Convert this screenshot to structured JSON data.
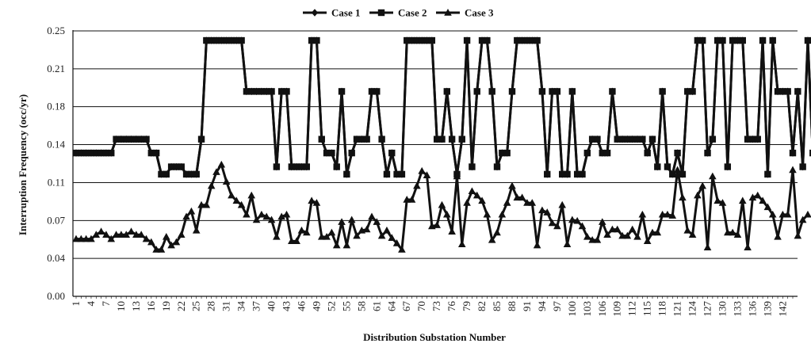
{
  "chart_data": {
    "type": "line",
    "title": "",
    "xlabel": "Distribution Substation Number",
    "ylabel": "Interruption Frequency (occ/yr)",
    "ylim": [
      0,
      0.25
    ],
    "y_ticks": [
      "0.00",
      "0.04",
      "0.07",
      "0.11",
      "0.14",
      "0.18",
      "0.21",
      "0.25"
    ],
    "y_tick_values": [
      0,
      0.0357,
      0.0714,
      0.1071,
      0.1429,
      0.1786,
      0.2143,
      0.25
    ],
    "grid": true,
    "legend_position": "top-center",
    "x_ticks": [
      1,
      4,
      7,
      10,
      13,
      16,
      19,
      22,
      25,
      28,
      31,
      34,
      37,
      40,
      43,
      46,
      49,
      52,
      55,
      58,
      61,
      64,
      67,
      70,
      73,
      76,
      79,
      82,
      85,
      88,
      91,
      94,
      97,
      100,
      103,
      106,
      109,
      112,
      115,
      118,
      121,
      124,
      127,
      130,
      133,
      136,
      139,
      142
    ],
    "x_max": 144,
    "series_color": "#111111",
    "series": [
      {
        "name": "Case 1",
        "marker": "diamond",
        "values": [
          0.135,
          0.135,
          0.135,
          0.135,
          0.135,
          0.135,
          0.135,
          0.135,
          0.148,
          0.148,
          0.148,
          0.148,
          0.148,
          0.148,
          0.148,
          0.135,
          0.135,
          0.115,
          0.115,
          0.122,
          0.122,
          0.122,
          0.115,
          0.115,
          0.115,
          0.148,
          0.241,
          0.241,
          0.241,
          0.241,
          0.241,
          0.241,
          0.241,
          0.241,
          0.193,
          0.193,
          0.193,
          0.193,
          0.193,
          0.193,
          0.122,
          0.193,
          0.193,
          0.122,
          0.122,
          0.122,
          0.122,
          0.241,
          0.241,
          0.148,
          0.135,
          0.135,
          0.122,
          0.193,
          0.115,
          0.135,
          0.148,
          0.148,
          0.148,
          0.193,
          0.193,
          0.148,
          0.115,
          0.135,
          0.115,
          0.115,
          0.241,
          0.241,
          0.241,
          0.241,
          0.241,
          0.241,
          0.148,
          0.148,
          0.193,
          0.148,
          0.115,
          0.148,
          0.241,
          0.122,
          0.193,
          0.241,
          0.241,
          0.193,
          0.122,
          0.135,
          0.135,
          0.193,
          0.241,
          0.241,
          0.241,
          0.241,
          0.241,
          0.193,
          0.115,
          0.193,
          0.193,
          0.115,
          0.115,
          0.193,
          0.115,
          0.115,
          0.135,
          0.148,
          0.148,
          0.135,
          0.135,
          0.193,
          0.148,
          0.148,
          0.148,
          0.148,
          0.148,
          0.148,
          0.135,
          0.148,
          0.122,
          0.193,
          0.122,
          0.115,
          0.135,
          0.115,
          0.193,
          0.193,
          0.241,
          0.241,
          0.135,
          0.148,
          0.241,
          0.241,
          0.122,
          0.241,
          0.241,
          0.241,
          0.148,
          0.148,
          0.148,
          0.241,
          0.115,
          0.241,
          0.193,
          0.193,
          0.193,
          0.135,
          0.193,
          0.122,
          0.241,
          0.135,
          0.193,
          0.193
        ]
      },
      {
        "name": "Case 2",
        "marker": "square",
        "values": [
          0.135,
          0.135,
          0.135,
          0.135,
          0.135,
          0.135,
          0.135,
          0.135,
          0.148,
          0.148,
          0.148,
          0.148,
          0.148,
          0.148,
          0.148,
          0.135,
          0.135,
          0.115,
          0.115,
          0.122,
          0.122,
          0.122,
          0.115,
          0.115,
          0.115,
          0.148,
          0.241,
          0.241,
          0.241,
          0.241,
          0.241,
          0.241,
          0.241,
          0.241,
          0.193,
          0.193,
          0.193,
          0.193,
          0.193,
          0.193,
          0.122,
          0.193,
          0.193,
          0.122,
          0.122,
          0.122,
          0.122,
          0.241,
          0.241,
          0.148,
          0.135,
          0.135,
          0.122,
          0.193,
          0.115,
          0.135,
          0.148,
          0.148,
          0.148,
          0.193,
          0.193,
          0.148,
          0.115,
          0.135,
          0.115,
          0.115,
          0.241,
          0.241,
          0.241,
          0.241,
          0.241,
          0.241,
          0.148,
          0.148,
          0.193,
          0.148,
          0.115,
          0.148,
          0.241,
          0.122,
          0.193,
          0.241,
          0.241,
          0.193,
          0.122,
          0.135,
          0.135,
          0.193,
          0.241,
          0.241,
          0.241,
          0.241,
          0.241,
          0.193,
          0.115,
          0.193,
          0.193,
          0.115,
          0.115,
          0.193,
          0.115,
          0.115,
          0.135,
          0.148,
          0.148,
          0.135,
          0.135,
          0.193,
          0.148,
          0.148,
          0.148,
          0.148,
          0.148,
          0.148,
          0.135,
          0.148,
          0.122,
          0.193,
          0.122,
          0.115,
          0.135,
          0.115,
          0.193,
          0.193,
          0.241,
          0.241,
          0.135,
          0.148,
          0.241,
          0.241,
          0.122,
          0.241,
          0.241,
          0.241,
          0.148,
          0.148,
          0.148,
          0.241,
          0.115,
          0.241,
          0.193,
          0.193,
          0.193,
          0.135,
          0.193,
          0.122,
          0.241,
          0.135,
          0.193,
          0.193
        ]
      },
      {
        "name": "Case 3",
        "marker": "triangle",
        "values": [
          0.054,
          0.054,
          0.054,
          0.054,
          0.058,
          0.061,
          0.058,
          0.054,
          0.058,
          0.058,
          0.058,
          0.061,
          0.058,
          0.058,
          0.054,
          0.051,
          0.044,
          0.044,
          0.056,
          0.048,
          0.051,
          0.058,
          0.075,
          0.08,
          0.062,
          0.086,
          0.086,
          0.104,
          0.117,
          0.124,
          0.108,
          0.095,
          0.09,
          0.086,
          0.077,
          0.095,
          0.072,
          0.077,
          0.075,
          0.072,
          0.056,
          0.075,
          0.077,
          0.052,
          0.052,
          0.062,
          0.06,
          0.09,
          0.088,
          0.056,
          0.056,
          0.06,
          0.048,
          0.07,
          0.048,
          0.072,
          0.057,
          0.062,
          0.063,
          0.075,
          0.07,
          0.057,
          0.062,
          0.055,
          0.05,
          0.044,
          0.091,
          0.091,
          0.104,
          0.118,
          0.114,
          0.066,
          0.067,
          0.086,
          0.077,
          0.061,
          0.113,
          0.049,
          0.088,
          0.099,
          0.095,
          0.09,
          0.077,
          0.053,
          0.06,
          0.077,
          0.088,
          0.104,
          0.093,
          0.093,
          0.088,
          0.088,
          0.048,
          0.081,
          0.079,
          0.069,
          0.066,
          0.086,
          0.049,
          0.072,
          0.071,
          0.066,
          0.056,
          0.053,
          0.053,
          0.07,
          0.058,
          0.063,
          0.063,
          0.057,
          0.057,
          0.063,
          0.056,
          0.077,
          0.052,
          0.06,
          0.06,
          0.077,
          0.077,
          0.076,
          0.119,
          0.093,
          0.062,
          0.058,
          0.095,
          0.104,
          0.046,
          0.113,
          0.09,
          0.088,
          0.06,
          0.06,
          0.058,
          0.09,
          0.046,
          0.093,
          0.095,
          0.09,
          0.084,
          0.077,
          0.056,
          0.077,
          0.077,
          0.119,
          0.057,
          0.072,
          0.077
        ]
      }
    ]
  }
}
